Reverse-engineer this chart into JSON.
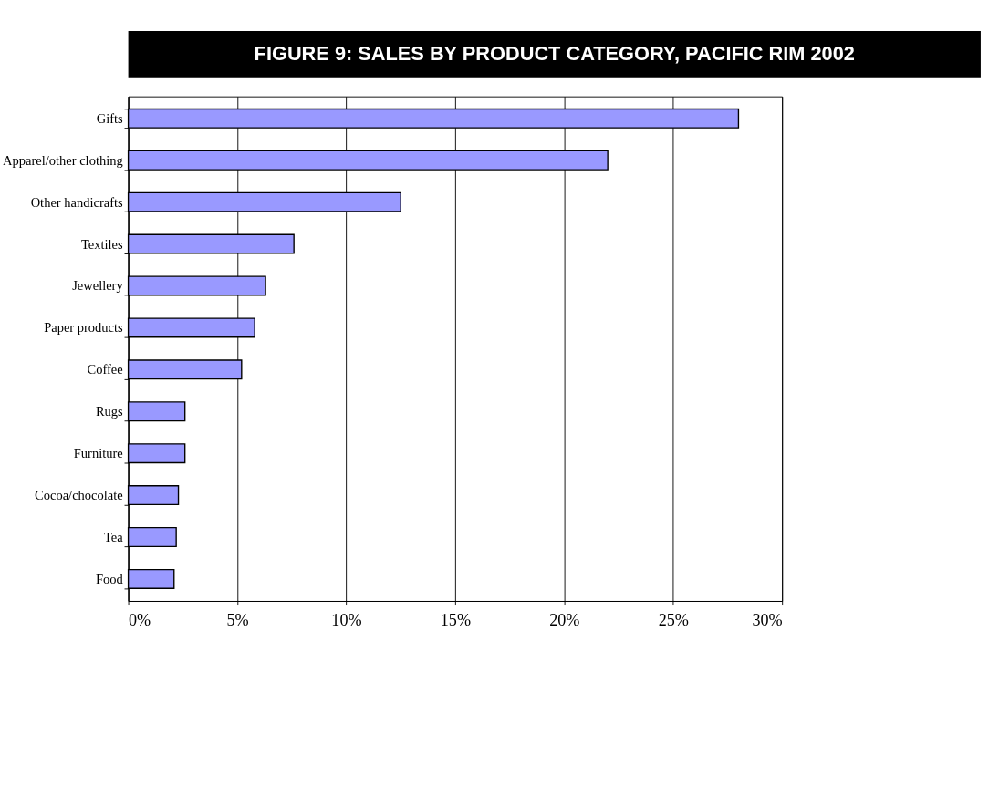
{
  "chart_data": {
    "type": "bar",
    "orientation": "horizontal",
    "title": "FIGURE 9: SALES BY PRODUCT CATEGORY, PACIFIC RIM 2002",
    "categories": [
      "Gifts",
      "Apparel/other clothing",
      "Other handicrafts",
      "Textiles",
      "Jewellery",
      "Paper products",
      "Coffee",
      "Rugs",
      "Furniture",
      "Cocoa/chocolate",
      "Tea",
      "Food"
    ],
    "values": [
      28,
      22,
      12.5,
      7.6,
      6.3,
      5.8,
      5.2,
      2.6,
      2.6,
      2.3,
      2.2,
      2.1
    ],
    "color": "#9999ff",
    "xlim": [
      0,
      30
    ],
    "xticks": [
      {
        "value": 0,
        "label": "0%"
      },
      {
        "value": 5,
        "label": "5%"
      },
      {
        "value": 10,
        "label": "10%"
      },
      {
        "value": 15,
        "label": "15%"
      },
      {
        "value": 20,
        "label": "20%"
      },
      {
        "value": 25,
        "label": "25%"
      },
      {
        "value": 30,
        "label": "30%"
      }
    ],
    "grid": "x"
  }
}
